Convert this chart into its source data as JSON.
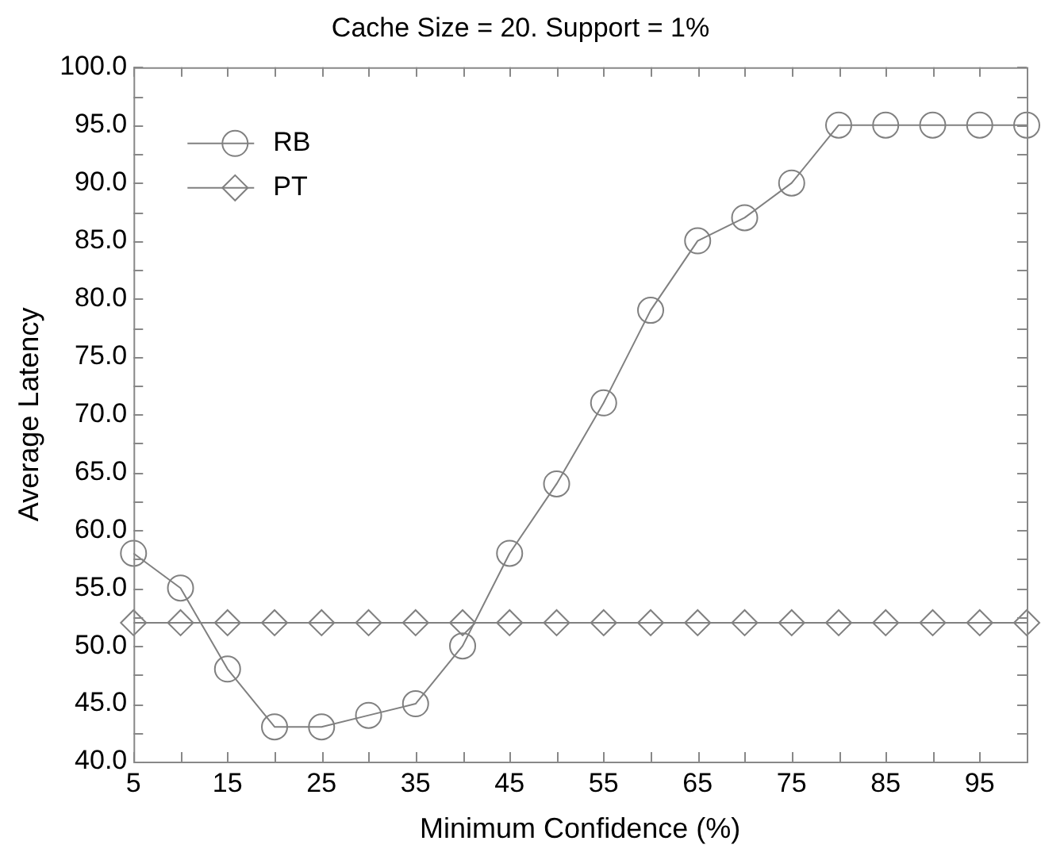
{
  "chart_data": {
    "type": "line",
    "title": "Cache Size = 20. Support = 1%",
    "xlabel": "Minimum Confidence (%)",
    "ylabel": "Average Latency",
    "x": [
      5,
      10,
      15,
      20,
      25,
      30,
      35,
      40,
      45,
      50,
      55,
      60,
      65,
      70,
      75,
      80,
      85,
      90,
      95,
      100
    ],
    "series": [
      {
        "name": "RB",
        "color": "#808080",
        "marker": "circle",
        "values": [
          58,
          55,
          48,
          43,
          43,
          44,
          45,
          50,
          58,
          64,
          71,
          79,
          85,
          87,
          90,
          95,
          95,
          95,
          95,
          95
        ]
      },
      {
        "name": "PT",
        "color": "#808080",
        "marker": "diamond",
        "values": [
          52,
          52,
          52,
          52,
          52,
          52,
          52,
          52,
          52,
          52,
          52,
          52,
          52,
          52,
          52,
          52,
          52,
          52,
          52,
          52
        ]
      }
    ],
    "xlim": [
      5,
      100
    ],
    "xticks": [
      5,
      {
        "value": 10,
        "label": null
      },
      15,
      {
        "value": 20,
        "label": null
      },
      25,
      {
        "value": 30,
        "label": null
      },
      35,
      {
        "value": 40,
        "label": null
      },
      45,
      {
        "value": 50,
        "label": null
      },
      55,
      {
        "value": 60,
        "label": null
      },
      65,
      {
        "value": 70,
        "label": null
      },
      75,
      {
        "value": 80,
        "label": null
      },
      85,
      {
        "value": 90,
        "label": null
      },
      95,
      {
        "value": 100,
        "label": null
      }
    ],
    "ylim": [
      40,
      100
    ],
    "yticks": [
      {
        "value": 40,
        "label": "40.0"
      },
      {
        "value": 42.5,
        "label": null
      },
      {
        "value": 45,
        "label": "45.0"
      },
      {
        "value": 47.5,
        "label": null
      },
      {
        "value": 50,
        "label": "50.0"
      },
      {
        "value": 52.5,
        "label": null
      },
      {
        "value": 55,
        "label": "55.0"
      },
      {
        "value": 57.5,
        "label": null
      },
      {
        "value": 60,
        "label": "60.0"
      },
      {
        "value": 62.5,
        "label": null
      },
      {
        "value": 65,
        "label": "65.0"
      },
      {
        "value": 67.5,
        "label": null
      },
      {
        "value": 70,
        "label": "70.0"
      },
      {
        "value": 72.5,
        "label": null
      },
      {
        "value": 75,
        "label": "75.0"
      },
      {
        "value": 77.5,
        "label": null
      },
      {
        "value": 80,
        "label": "80.0"
      },
      {
        "value": 82.5,
        "label": null
      },
      {
        "value": 85,
        "label": "85.0"
      },
      {
        "value": 87.5,
        "label": null
      },
      {
        "value": 90,
        "label": "90.0"
      },
      {
        "value": 92.5,
        "label": null
      },
      {
        "value": 95,
        "label": "95.0"
      },
      {
        "value": 97.5,
        "label": null
      },
      {
        "value": 100,
        "label": "100.0"
      }
    ],
    "grid": false,
    "legend": "top left",
    "line_style": "solid"
  }
}
